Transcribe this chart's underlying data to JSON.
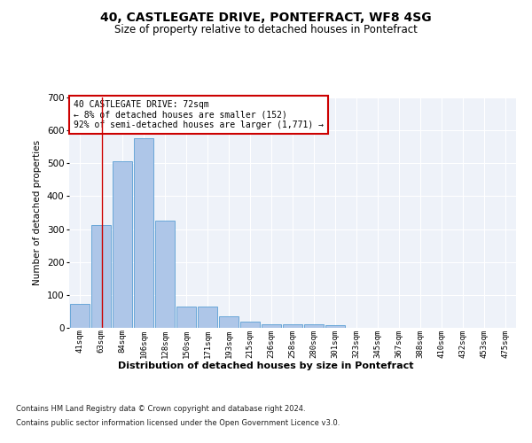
{
  "title": "40, CASTLEGATE DRIVE, PONTEFRACT, WF8 4SG",
  "subtitle": "Size of property relative to detached houses in Pontefract",
  "xlabel": "Distribution of detached houses by size in Pontefract",
  "ylabel": "Number of detached properties",
  "bar_color": "#aec6e8",
  "bar_edge_color": "#5a9fd4",
  "categories": [
    "41sqm",
    "63sqm",
    "84sqm",
    "106sqm",
    "128sqm",
    "150sqm",
    "171sqm",
    "193sqm",
    "215sqm",
    "236sqm",
    "258sqm",
    "280sqm",
    "301sqm",
    "323sqm",
    "345sqm",
    "367sqm",
    "388sqm",
    "410sqm",
    "432sqm",
    "453sqm",
    "475sqm"
  ],
  "values": [
    72,
    312,
    505,
    575,
    325,
    65,
    65,
    35,
    18,
    12,
    10,
    10,
    8,
    0,
    0,
    0,
    0,
    0,
    0,
    0,
    0
  ],
  "ylim": [
    0,
    700
  ],
  "yticks": [
    0,
    100,
    200,
    300,
    400,
    500,
    600,
    700
  ],
  "property_line_x": 1.05,
  "annotation_text": "40 CASTLEGATE DRIVE: 72sqm\n← 8% of detached houses are smaller (152)\n92% of semi-detached houses are larger (1,771) →",
  "annotation_box_color": "#ffffff",
  "annotation_box_edge_color": "#cc0000",
  "footer_line1": "Contains HM Land Registry data © Crown copyright and database right 2024.",
  "footer_line2": "Contains public sector information licensed under the Open Government Licence v3.0.",
  "background_color": "#eef2f9",
  "grid_color": "#ffffff",
  "fig_bg_color": "#ffffff"
}
